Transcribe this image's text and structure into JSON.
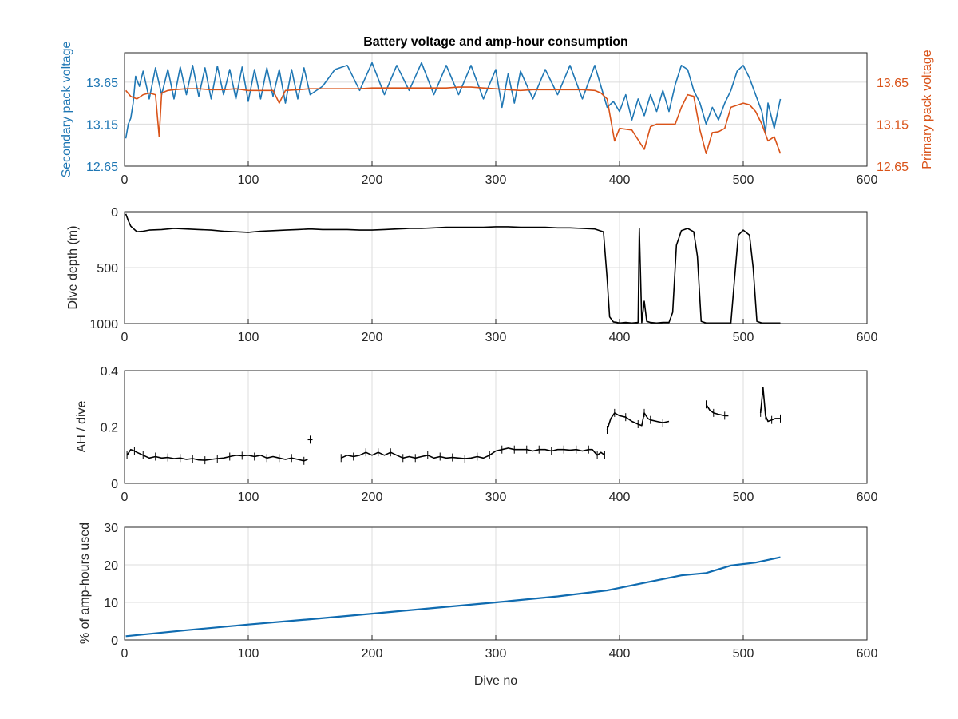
{
  "title": "Battery voltage and amp-hour consumption",
  "colors": {
    "secondary": "#1f77b4",
    "primary": "#d95319",
    "black": "#000000",
    "blue_line": "#0f6bb0"
  },
  "chart_data": [
    {
      "type": "line",
      "title": "Battery voltage and amp-hour consumption",
      "xlabel": "",
      "ylabel": "Secondary pack voltage",
      "y2label": "Primary pack voltage",
      "xlim": [
        0,
        600
      ],
      "ylim": [
        12.65,
        14.0
      ],
      "y2lim": [
        12.65,
        14.0
      ],
      "xticks": [
        "0",
        "100",
        "200",
        "300",
        "400",
        "500",
        "600"
      ],
      "yticks": [
        "12.65",
        "13.15",
        "13.65"
      ],
      "y2ticks": [
        "12.65",
        "13.15",
        "13.65"
      ],
      "grid": true,
      "series": [
        {
          "name": "Secondary pack voltage",
          "axis": "left",
          "x": [
            1,
            3,
            5,
            7,
            9,
            12,
            15,
            20,
            25,
            30,
            35,
            40,
            45,
            50,
            55,
            60,
            65,
            70,
            75,
            80,
            85,
            90,
            95,
            100,
            105,
            110,
            115,
            120,
            125,
            130,
            135,
            140,
            145,
            150,
            160,
            170,
            180,
            190,
            200,
            210,
            220,
            230,
            240,
            250,
            260,
            270,
            280,
            290,
            300,
            305,
            310,
            315,
            320,
            330,
            340,
            350,
            360,
            370,
            380,
            385,
            390,
            395,
            400,
            405,
            410,
            415,
            420,
            425,
            430,
            435,
            440,
            445,
            450,
            455,
            460,
            465,
            470,
            475,
            480,
            485,
            490,
            495,
            500,
            505,
            510,
            515,
            518,
            520,
            525,
            530
          ],
          "y": [
            12.98,
            13.15,
            13.22,
            13.4,
            13.72,
            13.6,
            13.78,
            13.45,
            13.82,
            13.5,
            13.8,
            13.45,
            13.83,
            13.5,
            13.85,
            13.48,
            13.82,
            13.45,
            13.84,
            13.5,
            13.8,
            13.45,
            13.83,
            13.42,
            13.8,
            13.45,
            13.82,
            13.48,
            13.8,
            13.4,
            13.8,
            13.45,
            13.82,
            13.5,
            13.6,
            13.8,
            13.85,
            13.55,
            13.88,
            13.5,
            13.85,
            13.55,
            13.88,
            13.5,
            13.85,
            13.5,
            13.85,
            13.45,
            13.8,
            13.35,
            13.75,
            13.4,
            13.78,
            13.45,
            13.8,
            13.5,
            13.85,
            13.45,
            13.85,
            13.6,
            13.35,
            13.42,
            13.3,
            13.5,
            13.2,
            13.45,
            13.25,
            13.5,
            13.3,
            13.55,
            13.3,
            13.62,
            13.85,
            13.8,
            13.55,
            13.4,
            13.15,
            13.35,
            13.2,
            13.4,
            13.55,
            13.78,
            13.85,
            13.7,
            13.5,
            13.3,
            13.05,
            13.4,
            13.1,
            13.45
          ]
        },
        {
          "name": "Primary pack voltage",
          "axis": "right",
          "x": [
            1,
            5,
            10,
            15,
            20,
            25,
            28,
            30,
            35,
            40,
            50,
            60,
            70,
            80,
            90,
            100,
            110,
            120,
            125,
            130,
            140,
            150,
            160,
            170,
            180,
            190,
            200,
            210,
            220,
            230,
            240,
            250,
            260,
            270,
            280,
            290,
            300,
            310,
            320,
            330,
            340,
            350,
            360,
            370,
            380,
            385,
            390,
            393,
            396,
            400,
            410,
            420,
            425,
            430,
            440,
            445,
            450,
            455,
            460,
            465,
            470,
            475,
            480,
            485,
            490,
            500,
            505,
            510,
            515,
            520,
            525,
            530
          ],
          "y": [
            13.55,
            13.48,
            13.45,
            13.5,
            13.52,
            13.5,
            13.0,
            13.52,
            13.55,
            13.56,
            13.57,
            13.57,
            13.56,
            13.56,
            13.57,
            13.55,
            13.55,
            13.55,
            13.4,
            13.55,
            13.56,
            13.57,
            13.57,
            13.57,
            13.57,
            13.57,
            13.58,
            13.58,
            13.58,
            13.58,
            13.58,
            13.58,
            13.58,
            13.59,
            13.59,
            13.58,
            13.57,
            13.56,
            13.55,
            13.56,
            13.56,
            13.56,
            13.56,
            13.56,
            13.55,
            13.52,
            13.45,
            13.2,
            12.95,
            13.1,
            13.08,
            12.85,
            13.12,
            13.15,
            13.15,
            13.15,
            13.35,
            13.5,
            13.48,
            13.08,
            12.8,
            13.05,
            13.06,
            13.1,
            13.35,
            13.4,
            13.38,
            13.3,
            13.15,
            12.95,
            13.0,
            12.8
          ]
        }
      ]
    },
    {
      "type": "line",
      "xlabel": "",
      "ylabel": "Dive depth (m)",
      "xlim": [
        0,
        600
      ],
      "ylim": [
        1000,
        0
      ],
      "y_reversed": true,
      "xticks": [
        "0",
        "100",
        "200",
        "300",
        "400",
        "500",
        "600"
      ],
      "yticks": [
        "0",
        "500",
        "1000"
      ],
      "grid": true,
      "series": [
        {
          "x": [
            1,
            3,
            5,
            8,
            10,
            15,
            20,
            30,
            40,
            50,
            60,
            70,
            80,
            90,
            100,
            110,
            120,
            130,
            140,
            150,
            160,
            170,
            180,
            190,
            200,
            210,
            220,
            230,
            240,
            250,
            260,
            270,
            280,
            290,
            300,
            310,
            320,
            330,
            340,
            350,
            360,
            370,
            380,
            387,
            390,
            392,
            395,
            398,
            400,
            405,
            410,
            415,
            416,
            418,
            420,
            422,
            425,
            430,
            435,
            440,
            443,
            446,
            450,
            455,
            460,
            463,
            466,
            470,
            480,
            490,
            493,
            496,
            500,
            505,
            508,
            511,
            515,
            520,
            525,
            530
          ],
          "y": [
            20,
            80,
            130,
            160,
            180,
            175,
            165,
            160,
            150,
            155,
            160,
            165,
            175,
            180,
            185,
            175,
            170,
            165,
            160,
            155,
            160,
            160,
            160,
            165,
            165,
            160,
            155,
            150,
            150,
            145,
            140,
            140,
            140,
            140,
            135,
            135,
            140,
            140,
            140,
            145,
            145,
            150,
            155,
            180,
            600,
            940,
            985,
            990,
            995,
            990,
            995,
            990,
            150,
            990,
            800,
            980,
            990,
            995,
            990,
            990,
            900,
            300,
            170,
            150,
            180,
            400,
            980,
            995,
            995,
            995,
            600,
            210,
            165,
            210,
            500,
            980,
            995,
            995,
            995,
            995
          ]
        }
      ]
    },
    {
      "type": "scatter",
      "xlabel": "",
      "ylabel": "AH / dive",
      "xlim": [
        0,
        600
      ],
      "ylim": [
        0,
        0.4
      ],
      "xticks": [
        "0",
        "100",
        "200",
        "300",
        "400",
        "500",
        "600"
      ],
      "yticks": [
        "0",
        "0.2",
        "0.4"
      ],
      "grid": true,
      "series": [
        {
          "segments": [
            {
              "x": [
                2,
                5,
                8,
                10,
                15,
                20,
                25,
                30,
                35,
                40,
                45,
                50,
                55,
                60,
                65,
                70,
                75,
                80,
                85,
                90,
                95,
                100,
                105,
                110,
                115,
                120,
                125,
                130,
                135,
                140,
                145,
                148
              ],
              "y": [
                0.1,
                0.12,
                0.115,
                0.11,
                0.1,
                0.09,
                0.095,
                0.09,
                0.092,
                0.088,
                0.09,
                0.085,
                0.088,
                0.083,
                0.082,
                0.085,
                0.088,
                0.09,
                0.095,
                0.1,
                0.098,
                0.1,
                0.095,
                0.1,
                0.09,
                0.095,
                0.09,
                0.085,
                0.09,
                0.085,
                0.08,
                0.085
              ]
            },
            {
              "x": [
                150
              ],
              "y": [
                0.155
              ]
            },
            {
              "x": [
                175,
                180,
                185,
                190,
                195,
                200,
                205,
                210,
                215,
                220,
                225,
                230,
                235,
                240,
                245,
                250,
                255,
                260,
                265,
                270,
                275,
                280,
                285,
                290,
                295,
                300,
                305,
                310,
                315,
                320,
                325,
                330,
                335,
                340,
                345,
                350,
                355,
                360,
                365,
                370,
                375,
                378,
                382,
                385,
                388
              ],
              "y": [
                0.09,
                0.1,
                0.095,
                0.1,
                0.11,
                0.1,
                0.11,
                0.1,
                0.11,
                0.1,
                0.09,
                0.095,
                0.09,
                0.095,
                0.1,
                0.09,
                0.095,
                0.09,
                0.092,
                0.09,
                0.088,
                0.09,
                0.095,
                0.09,
                0.1,
                0.115,
                0.12,
                0.125,
                0.12,
                0.12,
                0.12,
                0.115,
                0.12,
                0.12,
                0.115,
                0.12,
                0.12,
                0.118,
                0.12,
                0.115,
                0.12,
                0.12,
                0.1,
                0.11,
                0.1
              ]
            },
            {
              "x": [
                390,
                393,
                396,
                400,
                405,
                410,
                415,
                418,
                420,
                423,
                425,
                430,
                435,
                440
              ],
              "y": [
                0.19,
                0.23,
                0.25,
                0.24,
                0.235,
                0.22,
                0.21,
                0.205,
                0.25,
                0.23,
                0.225,
                0.22,
                0.215,
                0.22
              ]
            },
            {
              "x": [
                470,
                473,
                476,
                480,
                485,
                488
              ],
              "y": [
                0.28,
                0.26,
                0.25,
                0.245,
                0.24,
                0.24
              ]
            },
            {
              "x": [
                514,
                516,
                518,
                520,
                523,
                526,
                530
              ],
              "y": [
                0.25,
                0.34,
                0.24,
                0.22,
                0.225,
                0.23,
                0.23
              ]
            }
          ]
        }
      ]
    },
    {
      "type": "line",
      "xlabel": "Dive no",
      "ylabel": "% of amp-hours used",
      "xlim": [
        0,
        600
      ],
      "ylim": [
        0,
        30
      ],
      "xticks": [
        "0",
        "100",
        "200",
        "300",
        "400",
        "500",
        "600"
      ],
      "yticks": [
        "0",
        "10",
        "20",
        "30"
      ],
      "grid": true,
      "series": [
        {
          "x": [
            1,
            50,
            100,
            150,
            200,
            250,
            300,
            350,
            390,
            420,
            450,
            470,
            490,
            510,
            530
          ],
          "y": [
            1,
            2.6,
            4.1,
            5.5,
            7.0,
            8.5,
            10.0,
            11.6,
            13.2,
            15.2,
            17.2,
            17.8,
            19.8,
            20.6,
            22.0
          ]
        }
      ]
    }
  ]
}
